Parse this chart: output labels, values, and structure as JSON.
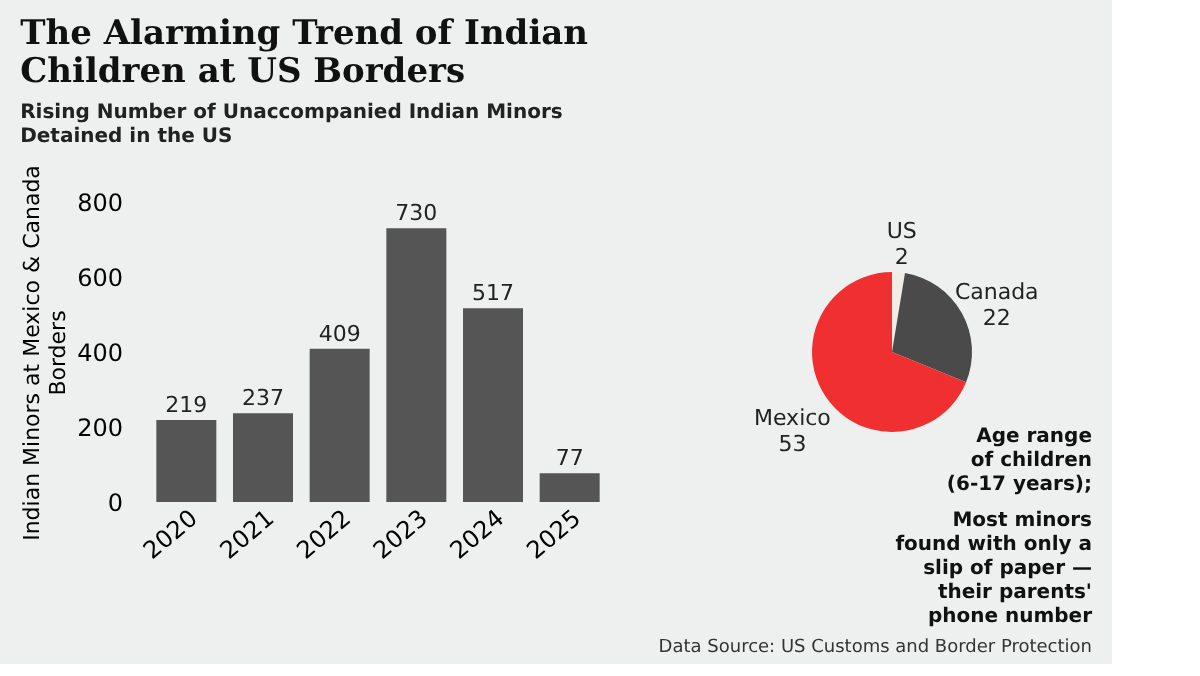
{
  "chart_data": [
    {
      "type": "bar",
      "title": "The Alarming Trend of Indian\nChildren at US Borders",
      "subtitle": "Rising Number of Unaccompanied Indian Minors\nDetained in the US",
      "ylabel": "Indian Minors at Mexico & Canada\nBorders",
      "categories": [
        "2020",
        "2021",
        "2022",
        "2023",
        "2024",
        "2025"
      ],
      "values": [
        219,
        237,
        409,
        730,
        517,
        77
      ],
      "color": "#555555",
      "ylim": [
        0,
        800
      ],
      "yticks": [
        0,
        200,
        400,
        600,
        800
      ],
      "grid": false,
      "data_labels": true,
      "legend": false
    },
    {
      "type": "pie",
      "categories": [
        "US",
        "Canada",
        "Mexico"
      ],
      "values": [
        2,
        22,
        53
      ],
      "colors": [
        "#f2ece4",
        "#4a4a4a",
        "#f03030"
      ],
      "data_labels": true,
      "legend": false,
      "annotations": [
        "Age range\nof children\n(6-17 years);",
        "Most minors\nfound with only a\nslip of paper —\ntheir parents'\nphone number",
        "Data Source: US Customs and Border Protection"
      ]
    }
  ]
}
